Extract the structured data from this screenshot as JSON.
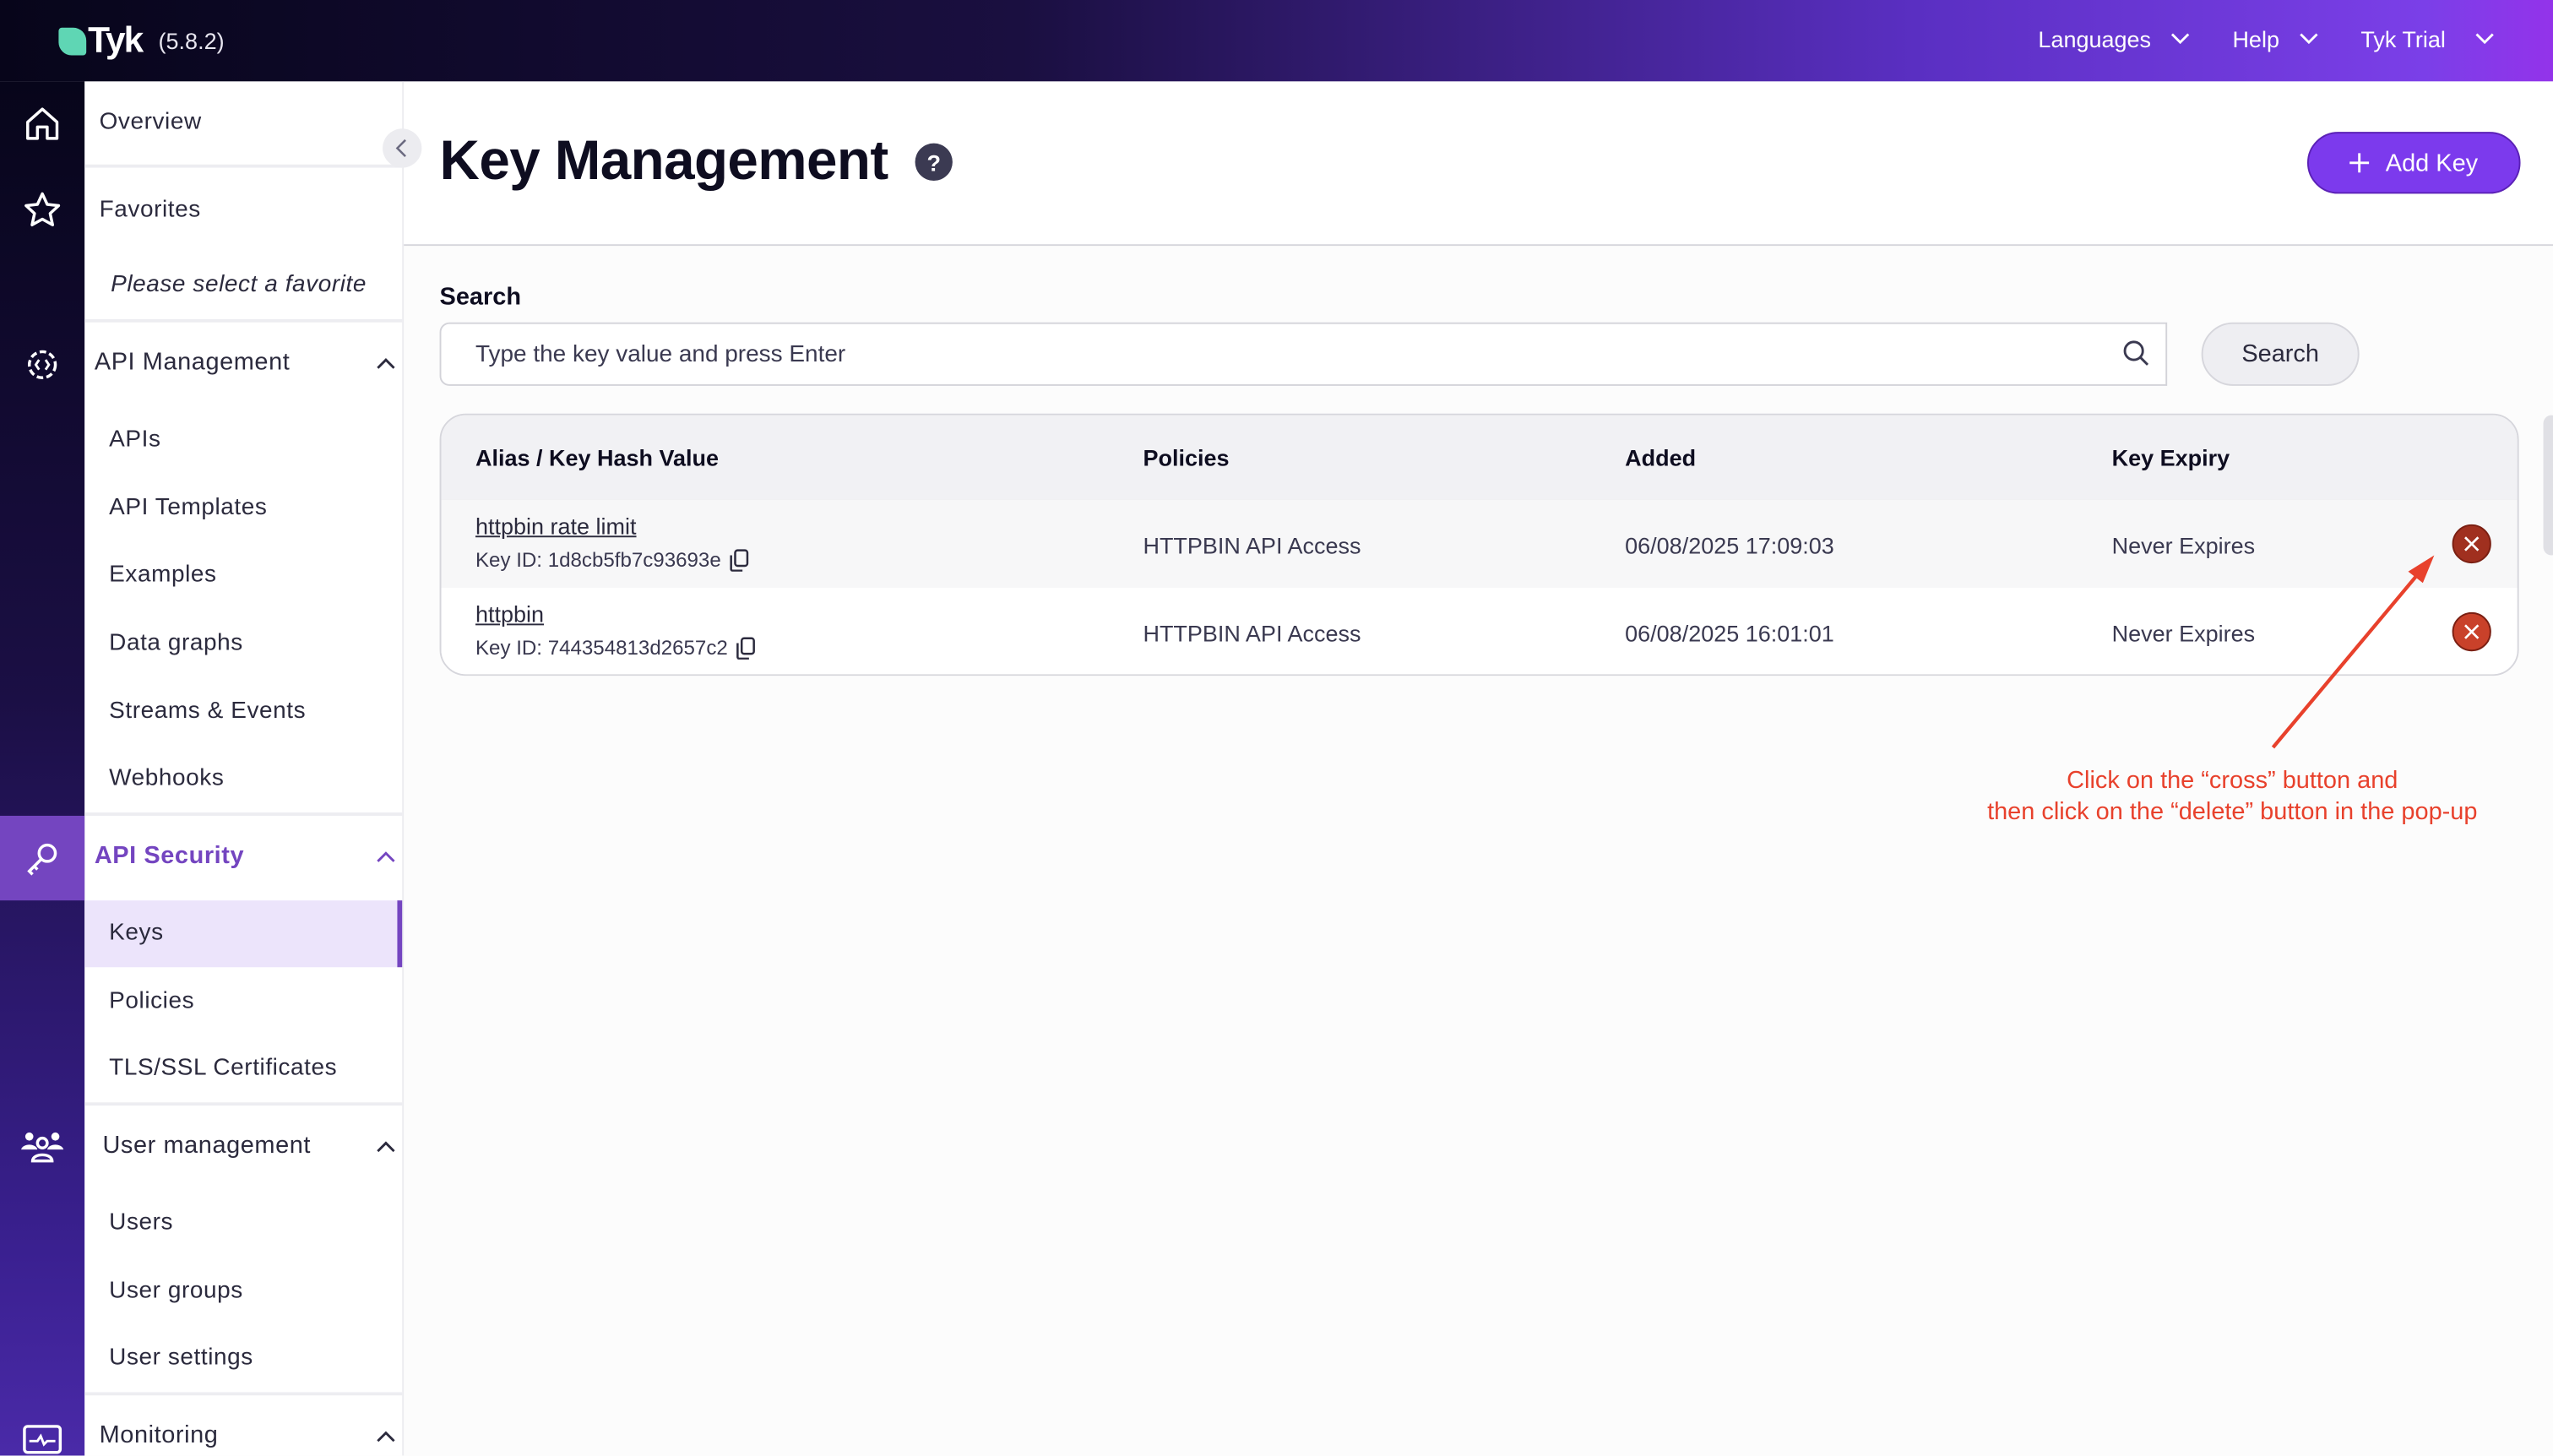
{
  "topbar": {
    "brand": "Tyk",
    "version": "(5.8.2)",
    "nav": [
      {
        "label": "Languages"
      },
      {
        "label": "Help"
      },
      {
        "label": "Tyk Trial"
      }
    ]
  },
  "rail": {
    "icons": [
      "home-icon",
      "star-icon",
      "api-gear-icon",
      "key-icon",
      "users-icon",
      "monitor-icon"
    ]
  },
  "sidebar": {
    "overview": "Overview",
    "favorites": "Favorites",
    "favorites_empty": "Please select a favorite",
    "api_management": {
      "label": "API Management",
      "items": [
        "APIs",
        "API Templates",
        "Examples",
        "Data graphs",
        "Streams & Events",
        "Webhooks"
      ]
    },
    "api_security": {
      "label": "API Security",
      "items": [
        "Keys",
        "Policies",
        "TLS/SSL Certificates"
      ],
      "active": "Keys"
    },
    "user_management": {
      "label": "User management",
      "items": [
        "Users",
        "User groups",
        "User settings"
      ]
    },
    "monitoring": {
      "label": "Monitoring"
    }
  },
  "main": {
    "title": "Key Management",
    "help": "?",
    "add_key": "Add Key",
    "search": {
      "label": "Search",
      "placeholder": "Type the key value and press Enter",
      "button": "Search"
    },
    "table": {
      "headers": [
        "Alias / Key Hash Value",
        "Policies",
        "Added",
        "Key Expiry"
      ],
      "rows": [
        {
          "alias": "httpbin rate limit",
          "key_id": "Key ID: 1d8cb5fb7c93693e",
          "policies": "HTTPBIN API Access",
          "added": "06/08/2025 17:09:03",
          "expiry": "Never Expires"
        },
        {
          "alias": "httpbin",
          "key_id": "Key ID: 744354813d2657c2",
          "policies": "HTTPBIN API Access",
          "added": "06/08/2025 16:01:01",
          "expiry": "Never Expires"
        }
      ]
    }
  },
  "annotation": {
    "line1": "Click on the “cross” button and",
    "line2": "then click on the “delete” button in the pop-up"
  },
  "colors": {
    "accent": "#7c3aed",
    "active_nav": "#7445c0",
    "delete": "#b8371f",
    "annotation": "#e8412c"
  }
}
